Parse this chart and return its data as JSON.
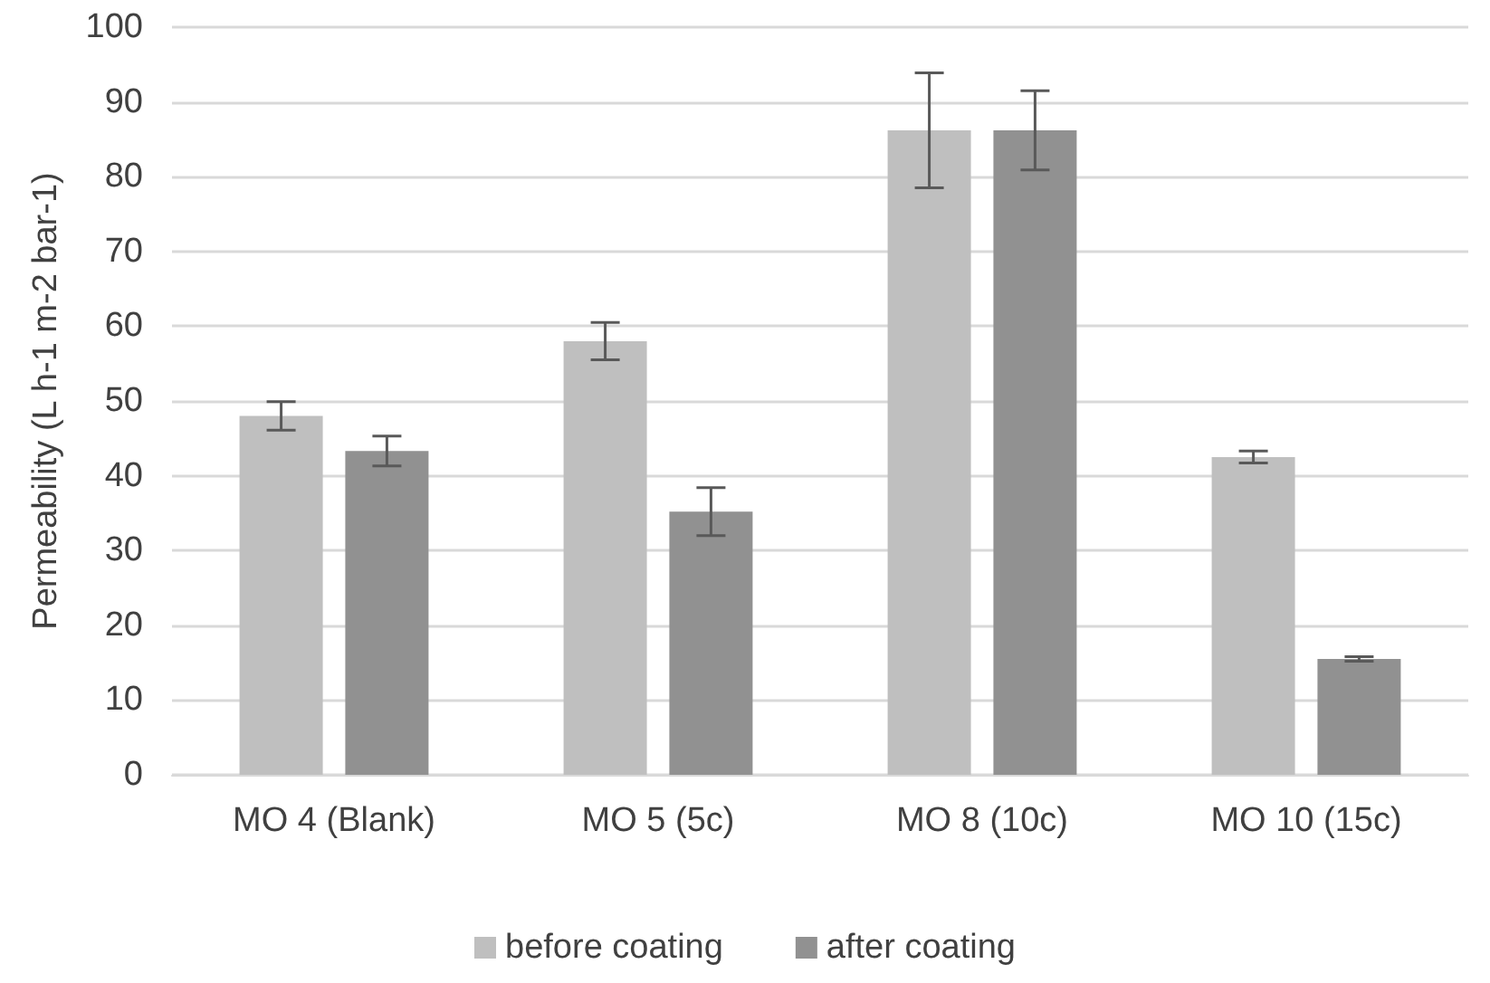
{
  "chart_data": {
    "type": "bar",
    "ylabel": "Permeability (L h-1 m-2 bar-1)",
    "categories": [
      "MO 4 (Blank)",
      "MO 5 (5c)",
      "MO 8 (10c)",
      "MO 10 (15c)"
    ],
    "series": [
      {
        "name": "before coating",
        "color": "#bfbfbf",
        "values": [
          48,
          58,
          86.2,
          42.5
        ],
        "errors": [
          1.9,
          2.5,
          7.7,
          0.8
        ]
      },
      {
        "name": "after coating",
        "color": "#919191",
        "values": [
          43.3,
          35.2,
          86.2,
          15.5
        ],
        "errors": [
          2,
          3.2,
          5.3,
          0.3
        ]
      }
    ],
    "ylim": [
      0,
      100
    ],
    "yticks": [
      0,
      10,
      20,
      30,
      40,
      50,
      60,
      70,
      80,
      90,
      100
    ],
    "grid": "y",
    "legend": "bottom"
  }
}
